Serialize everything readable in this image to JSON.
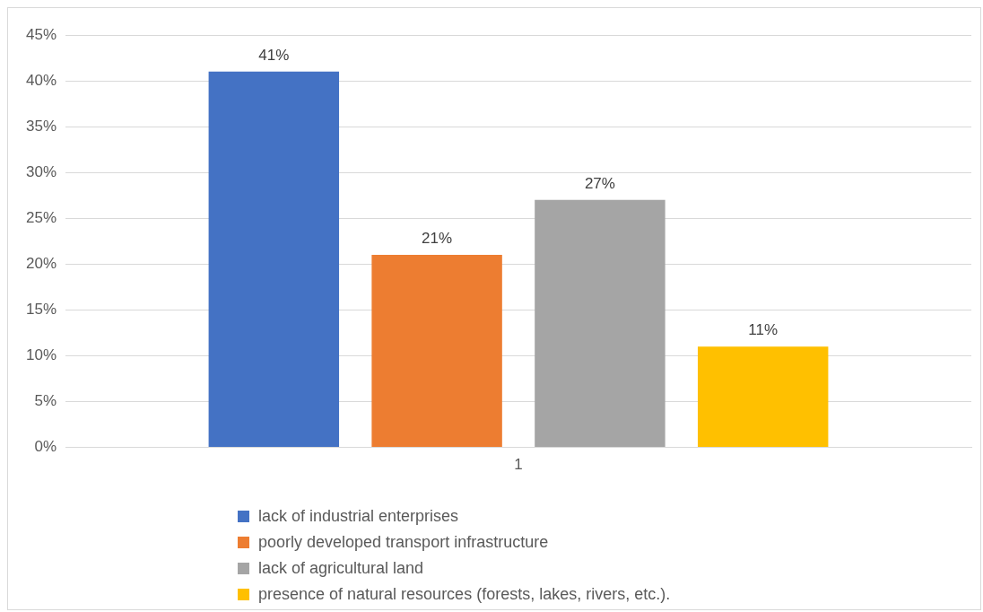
{
  "chart_data": {
    "type": "bar",
    "categories": [
      "1"
    ],
    "series": [
      {
        "name": "lack of industrial enterprises",
        "color": "#4472c4",
        "values": [
          41
        ],
        "value_labels": [
          "41%"
        ]
      },
      {
        "name": "poorly developed transport infrastructure",
        "color": "#ed7d31",
        "values": [
          21
        ],
        "value_labels": [
          "21%"
        ]
      },
      {
        "name": "lack of agricultural land",
        "color": "#a5a5a5",
        "values": [
          27
        ],
        "value_labels": [
          "27%"
        ]
      },
      {
        "name": "presence of natural resources (forests, lakes, rivers, etc.).",
        "color": "#ffc000",
        "values": [
          11
        ],
        "value_labels": [
          "11%"
        ]
      }
    ],
    "ylim": [
      0,
      45
    ],
    "yticks": [
      {
        "value": 0,
        "label": "0%"
      },
      {
        "value": 5,
        "label": "5%"
      },
      {
        "value": 10,
        "label": "10%"
      },
      {
        "value": 15,
        "label": "15%"
      },
      {
        "value": 20,
        "label": "20%"
      },
      {
        "value": 25,
        "label": "25%"
      },
      {
        "value": 30,
        "label": "30%"
      },
      {
        "value": 35,
        "label": "35%"
      },
      {
        "value": 40,
        "label": "40%"
      },
      {
        "value": 45,
        "label": "45%"
      }
    ],
    "grid": "y",
    "legend": "bottom"
  }
}
